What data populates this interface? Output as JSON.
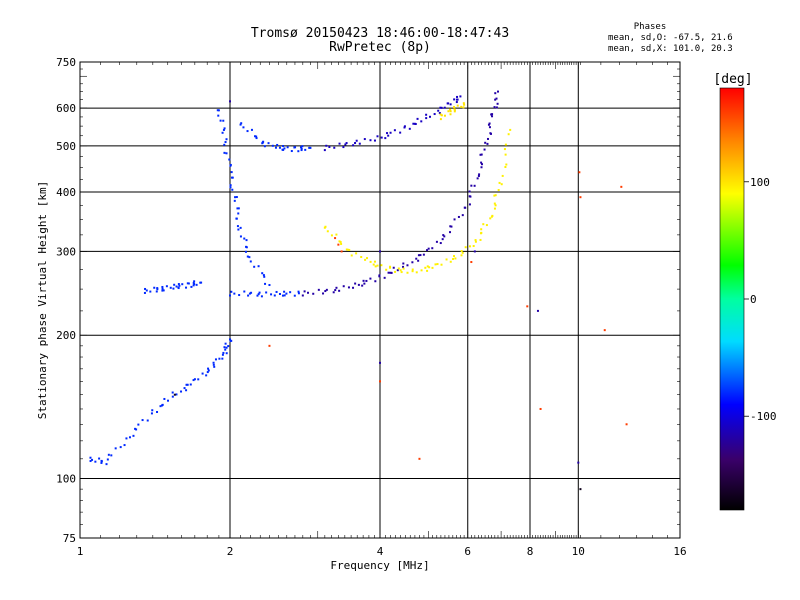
{
  "chart_data": {
    "type": "scatter",
    "title": "Tromsø 20150423 18:46:00-18:47:43",
    "subtitle": "RwPretec (8p)",
    "xlabel": "Frequency [MHz]",
    "ylabel": "Stationary phase Virtual Height [km]",
    "x_scale": "log",
    "y_scale": "log",
    "xlim": [
      1,
      16
    ],
    "ylim": [
      75,
      750
    ],
    "xticks": [
      1,
      2,
      4,
      6,
      8,
      10,
      16
    ],
    "xtick_labels": [
      "1",
      "2",
      "4",
      "6",
      "8",
      "10",
      "16"
    ],
    "yticks": [
      75,
      100,
      200,
      300,
      400,
      500,
      600,
      750
    ],
    "ytick_labels": [
      "75",
      "100",
      "200",
      "300",
      "400",
      "500",
      "600",
      "750"
    ],
    "grid": true,
    "stats": {
      "title": "Phases",
      "line_o": "mean, sd,O: -67.5, 21.6",
      "line_x": "mean, sd,X: 101.0, 20.3"
    },
    "colorbar": {
      "label": "[deg]",
      "range": [
        -180,
        180
      ],
      "ticks": [
        100,
        0,
        -100
      ],
      "tick_labels": [
        "100",
        "0",
        "-100"
      ]
    },
    "series": [
      {
        "kind": "curve",
        "phase": -80,
        "x": [
          1.05,
          1.12,
          1.25,
          1.4,
          1.55,
          1.7,
          1.85,
          1.95,
          2.0
        ],
        "y": [
          110,
          108,
          122,
          138,
          150,
          160,
          172,
          185,
          196
        ]
      },
      {
        "kind": "curve",
        "phase": -80,
        "x": [
          1.35,
          1.45,
          1.55,
          1.65,
          1.75
        ],
        "y": [
          248,
          250,
          253,
          255,
          258
        ]
      },
      {
        "kind": "curve",
        "phase": -80,
        "x": [
          1.9,
          1.95,
          2.0,
          2.05,
          2.1,
          2.2,
          2.4
        ],
        "y": [
          600,
          520,
          440,
          380,
          330,
          290,
          255
        ]
      },
      {
        "kind": "curve",
        "phase": -80,
        "x": [
          2.1,
          2.3,
          2.5,
          2.7,
          2.9
        ],
        "y": [
          560,
          510,
          495,
          492,
          495
        ]
      },
      {
        "kind": "curve",
        "phase": -80,
        "x": [
          2.0,
          2.25,
          2.5,
          2.75
        ],
        "y": [
          245,
          244,
          244,
          245
        ]
      },
      {
        "kind": "curve",
        "phase": -110,
        "x": [
          3.1,
          3.5,
          4.0,
          4.5,
          5.0,
          5.5,
          5.8
        ],
        "y": [
          495,
          505,
          520,
          545,
          575,
          610,
          635
        ]
      },
      {
        "kind": "curve",
        "phase": -120,
        "x": [
          2.8,
          3.2,
          3.6,
          4.0,
          4.5,
          5.0,
          5.5,
          6.0,
          6.3,
          6.55,
          6.75,
          6.9
        ],
        "y": [
          245,
          248,
          255,
          265,
          280,
          300,
          330,
          380,
          440,
          510,
          580,
          650
        ]
      },
      {
        "kind": "curve",
        "phase": 95,
        "x": [
          3.1,
          3.4,
          3.8,
          4.2,
          4.7,
          5.2,
          5.8,
          6.3,
          6.7,
          7.0,
          7.3
        ],
        "y": [
          340,
          305,
          285,
          275,
          272,
          280,
          295,
          320,
          360,
          420,
          540
        ]
      },
      {
        "kind": "curve",
        "phase": 100,
        "x": [
          5.3,
          5.6,
          5.9
        ],
        "y": [
          575,
          595,
          610
        ]
      },
      {
        "kind": "points",
        "phase": 160,
        "x": [
          3.25,
          3.3,
          3.35,
          2.4,
          4.8,
          4.0,
          10.05,
          10.1,
          12.2,
          8.4,
          12.5,
          7.9,
          6.1,
          11.3
        ],
        "y": [
          320,
          310,
          300,
          190,
          110,
          160,
          440,
          390,
          410,
          140,
          130,
          230,
          285,
          205
        ]
      },
      {
        "kind": "points",
        "phase": -120,
        "x": [
          4.0,
          10.0,
          4.0,
          6.2,
          8.3,
          2.0
        ],
        "y": [
          175,
          108,
          300,
          300,
          225,
          620
        ]
      },
      {
        "kind": "points",
        "phase": -170,
        "x": [
          10.1,
          1.55
        ],
        "y": [
          95,
          150
        ]
      }
    ]
  }
}
